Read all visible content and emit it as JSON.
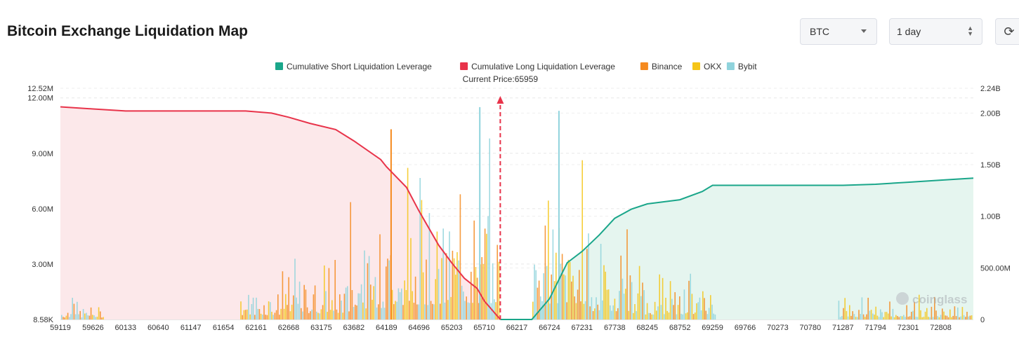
{
  "page": {
    "title": "Bitcoin Exchange Liquidation Map",
    "symbol_select": "BTC",
    "interval_select": "1 day",
    "refresh_icon": "refresh-icon"
  },
  "chart_data": {
    "type": "bar",
    "title": "Bitcoin Exchange Liquidation Map",
    "current_price_label": "Current Price:65959",
    "current_price": 65959,
    "watermark": "coinglass",
    "x_tick_labels": [
      "59119",
      "59626",
      "60133",
      "60640",
      "61147",
      "61654",
      "62161",
      "62668",
      "63175",
      "63682",
      "64189",
      "64696",
      "65203",
      "65710",
      "66217",
      "66724",
      "67231",
      "67738",
      "68245",
      "68752",
      "69259",
      "69766",
      "70273",
      "70780",
      "71287",
      "71794",
      "72301",
      "72808"
    ],
    "x_range": [
      59119,
      73315
    ],
    "y_left_ticks": [
      "12.52M",
      "12.00M",
      "9.00M",
      "6.00M",
      "3.00M",
      "8.58K"
    ],
    "y_left_range": [
      0,
      12.52
    ],
    "y_right_ticks": [
      "2.24B",
      "2.00B",
      "1.50B",
      "1.00B",
      "500.00M",
      "0"
    ],
    "y_right_range": [
      0,
      2.24
    ],
    "legend": [
      {
        "name": "Cumulative Short Liquidation Leverage",
        "color": "#1aa68a"
      },
      {
        "name": "Cumulative Long Liquidation Leverage",
        "color": "#e8334a"
      },
      {
        "name": "Binance",
        "color": "#f58a1f"
      },
      {
        "name": "OKX",
        "color": "#f5c518"
      },
      {
        "name": "Bybit",
        "color": "#8fd3dc"
      }
    ],
    "cumulative_long": {
      "unit": "B",
      "points": [
        [
          59119,
          2.06
        ],
        [
          59626,
          2.04
        ],
        [
          60133,
          2.02
        ],
        [
          61147,
          2.02
        ],
        [
          62000,
          2.02
        ],
        [
          62400,
          2.0
        ],
        [
          62668,
          1.96
        ],
        [
          63000,
          1.9
        ],
        [
          63400,
          1.84
        ],
        [
          63682,
          1.73
        ],
        [
          64100,
          1.55
        ],
        [
          64189,
          1.48
        ],
        [
          64500,
          1.28
        ],
        [
          64696,
          1.05
        ],
        [
          65000,
          0.72
        ],
        [
          65203,
          0.55
        ],
        [
          65400,
          0.4
        ],
        [
          65600,
          0.3
        ],
        [
          65710,
          0.18
        ],
        [
          65959,
          0.0
        ]
      ]
    },
    "cumulative_short": {
      "unit": "B",
      "points": [
        [
          65959,
          0.0
        ],
        [
          66450,
          0.0
        ],
        [
          66724,
          0.2
        ],
        [
          67000,
          0.55
        ],
        [
          67231,
          0.66
        ],
        [
          67500,
          0.82
        ],
        [
          67738,
          0.98
        ],
        [
          68000,
          1.07
        ],
        [
          68245,
          1.12
        ],
        [
          68752,
          1.16
        ],
        [
          69100,
          1.24
        ],
        [
          69259,
          1.3
        ],
        [
          70273,
          1.3
        ],
        [
          70780,
          1.3
        ],
        [
          71287,
          1.3
        ],
        [
          71794,
          1.31
        ],
        [
          72301,
          1.33
        ],
        [
          72808,
          1.35
        ],
        [
          73315,
          1.37
        ]
      ]
    },
    "exchange_bars": {
      "unit": "M",
      "peaks": [
        {
          "price": 64250,
          "exchange": "Binance",
          "value": 10.3
        },
        {
          "price": 65630,
          "exchange": "Bybit",
          "value": 11.5
        },
        {
          "price": 66860,
          "exchange": "Bybit",
          "value": 11.3
        }
      ]
    }
  }
}
